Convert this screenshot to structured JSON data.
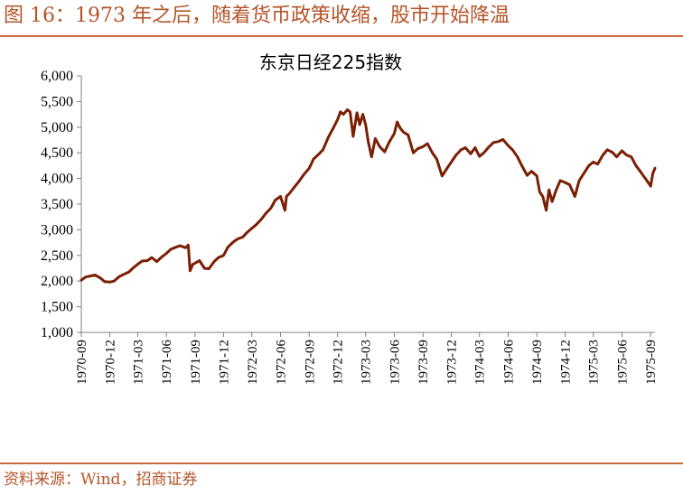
{
  "figure": {
    "header": "图 16：1973 年之后，随着货币政策收缩，股市开始降温",
    "source": "资料来源：Wind，招商证券"
  },
  "colors": {
    "accent": "#b5552a",
    "series": "#7a1f04",
    "axis": "#808080"
  },
  "chart_data": {
    "type": "line",
    "title": "东京日经225指数",
    "xlabel": "",
    "ylabel": "",
    "ylim": [
      1000,
      6000
    ],
    "yticks": [
      "1,000",
      "1,500",
      "2,000",
      "2,500",
      "3,000",
      "3,500",
      "4,000",
      "4,500",
      "5,000",
      "5,500",
      "6,000"
    ],
    "ytick_values": [
      1000,
      1500,
      2000,
      2500,
      3000,
      3500,
      4000,
      4500,
      5000,
      5500,
      6000
    ],
    "xticks": [
      "1970-09",
      "1970-12",
      "1971-03",
      "1971-06",
      "1971-09",
      "1971-12",
      "1972-03",
      "1972-06",
      "1972-09",
      "1972-12",
      "1973-03",
      "1973-06",
      "1973-09",
      "1973-12",
      "1974-03",
      "1974-06",
      "1974-09",
      "1974-12",
      "1975-03",
      "1975-06",
      "1975-09"
    ],
    "grid": false,
    "legend": "none",
    "series": [
      {
        "values": [
          [
            "1970-09-01",
            2020
          ],
          [
            "1970-09-15",
            2080
          ],
          [
            "1970-10-01",
            2100
          ],
          [
            "1970-10-15",
            2120
          ],
          [
            "1970-11-01",
            2060
          ],
          [
            "1970-11-15",
            1990
          ],
          [
            "1970-12-01",
            1980
          ],
          [
            "1970-12-15",
            2000
          ],
          [
            "1971-01-01",
            2090
          ],
          [
            "1971-01-15",
            2130
          ],
          [
            "1971-02-01",
            2180
          ],
          [
            "1971-02-15",
            2260
          ],
          [
            "1971-03-01",
            2330
          ],
          [
            "1971-03-15",
            2390
          ],
          [
            "1971-04-01",
            2400
          ],
          [
            "1971-04-15",
            2460
          ],
          [
            "1971-05-01",
            2380
          ],
          [
            "1971-05-15",
            2460
          ],
          [
            "1971-06-01",
            2540
          ],
          [
            "1971-06-15",
            2620
          ],
          [
            "1971-07-01",
            2660
          ],
          [
            "1971-07-15",
            2690
          ],
          [
            "1971-08-01",
            2650
          ],
          [
            "1971-08-10",
            2700
          ],
          [
            "1971-08-16",
            2200
          ],
          [
            "1971-08-25",
            2330
          ],
          [
            "1971-09-01",
            2350
          ],
          [
            "1971-09-15",
            2400
          ],
          [
            "1971-10-01",
            2250
          ],
          [
            "1971-10-15",
            2240
          ],
          [
            "1971-11-01",
            2380
          ],
          [
            "1971-11-15",
            2460
          ],
          [
            "1971-12-01",
            2500
          ],
          [
            "1971-12-15",
            2660
          ],
          [
            "1972-01-01",
            2760
          ],
          [
            "1972-01-15",
            2820
          ],
          [
            "1972-02-01",
            2860
          ],
          [
            "1972-02-15",
            2950
          ],
          [
            "1972-03-01",
            3030
          ],
          [
            "1972-03-15",
            3100
          ],
          [
            "1972-04-01",
            3210
          ],
          [
            "1972-04-15",
            3320
          ],
          [
            "1972-05-01",
            3420
          ],
          [
            "1972-05-15",
            3580
          ],
          [
            "1972-06-01",
            3650
          ],
          [
            "1972-06-15",
            3380
          ],
          [
            "1972-06-20",
            3650
          ],
          [
            "1972-07-01",
            3720
          ],
          [
            "1972-07-15",
            3830
          ],
          [
            "1972-08-01",
            3960
          ],
          [
            "1972-08-15",
            4080
          ],
          [
            "1972-09-01",
            4200
          ],
          [
            "1972-09-15",
            4380
          ],
          [
            "1972-10-01",
            4470
          ],
          [
            "1972-10-15",
            4560
          ],
          [
            "1972-11-01",
            4800
          ],
          [
            "1972-11-15",
            4960
          ],
          [
            "1972-12-01",
            5150
          ],
          [
            "1972-12-10",
            5300
          ],
          [
            "1972-12-20",
            5250
          ],
          [
            "1973-01-01",
            5340
          ],
          [
            "1973-01-10",
            5300
          ],
          [
            "1973-01-20",
            4820
          ],
          [
            "1973-02-01",
            5280
          ],
          [
            "1973-02-10",
            5050
          ],
          [
            "1973-02-20",
            5250
          ],
          [
            "1973-03-01",
            5050
          ],
          [
            "1973-03-10",
            4700
          ],
          [
            "1973-03-20",
            4420
          ],
          [
            "1973-04-01",
            4780
          ],
          [
            "1973-04-15",
            4620
          ],
          [
            "1973-05-01",
            4520
          ],
          [
            "1973-05-15",
            4700
          ],
          [
            "1973-06-01",
            4880
          ],
          [
            "1973-06-10",
            5100
          ],
          [
            "1973-06-20",
            4980
          ],
          [
            "1973-07-01",
            4900
          ],
          [
            "1973-07-15",
            4850
          ],
          [
            "1973-08-01",
            4500
          ],
          [
            "1973-08-15",
            4580
          ],
          [
            "1973-09-01",
            4620
          ],
          [
            "1973-09-15",
            4680
          ],
          [
            "1973-10-01",
            4500
          ],
          [
            "1973-10-15",
            4380
          ],
          [
            "1973-11-01",
            4050
          ],
          [
            "1973-11-15",
            4180
          ],
          [
            "1973-12-01",
            4320
          ],
          [
            "1973-12-15",
            4450
          ],
          [
            "1974-01-01",
            4560
          ],
          [
            "1974-01-15",
            4600
          ],
          [
            "1974-02-01",
            4480
          ],
          [
            "1974-02-15",
            4600
          ],
          [
            "1974-03-01",
            4430
          ],
          [
            "1974-03-15",
            4500
          ],
          [
            "1974-04-01",
            4620
          ],
          [
            "1974-04-15",
            4700
          ],
          [
            "1974-05-01",
            4720
          ],
          [
            "1974-05-15",
            4760
          ],
          [
            "1974-06-01",
            4640
          ],
          [
            "1974-06-15",
            4560
          ],
          [
            "1974-07-01",
            4420
          ],
          [
            "1974-07-15",
            4250
          ],
          [
            "1974-08-01",
            4060
          ],
          [
            "1974-08-15",
            4140
          ],
          [
            "1974-09-01",
            4050
          ],
          [
            "1974-09-10",
            3740
          ],
          [
            "1974-09-20",
            3650
          ],
          [
            "1974-10-01",
            3380
          ],
          [
            "1974-10-10",
            3780
          ],
          [
            "1974-10-20",
            3550
          ],
          [
            "1974-11-01",
            3760
          ],
          [
            "1974-11-15",
            3960
          ],
          [
            "1974-12-01",
            3920
          ],
          [
            "1974-12-15",
            3880
          ],
          [
            "1975-01-01",
            3650
          ],
          [
            "1975-01-15",
            3960
          ],
          [
            "1975-02-01",
            4120
          ],
          [
            "1975-02-15",
            4250
          ],
          [
            "1975-03-01",
            4320
          ],
          [
            "1975-03-15",
            4280
          ],
          [
            "1975-04-01",
            4460
          ],
          [
            "1975-04-15",
            4560
          ],
          [
            "1975-05-01",
            4510
          ],
          [
            "1975-05-15",
            4420
          ],
          [
            "1975-06-01",
            4540
          ],
          [
            "1975-06-15",
            4460
          ],
          [
            "1975-07-01",
            4420
          ],
          [
            "1975-07-15",
            4260
          ],
          [
            "1975-08-01",
            4120
          ],
          [
            "1975-08-10",
            4040
          ],
          [
            "1975-08-20",
            3960
          ],
          [
            "1975-09-01",
            3850
          ],
          [
            "1975-09-08",
            4100
          ],
          [
            "1975-09-15",
            4200
          ]
        ]
      }
    ]
  }
}
